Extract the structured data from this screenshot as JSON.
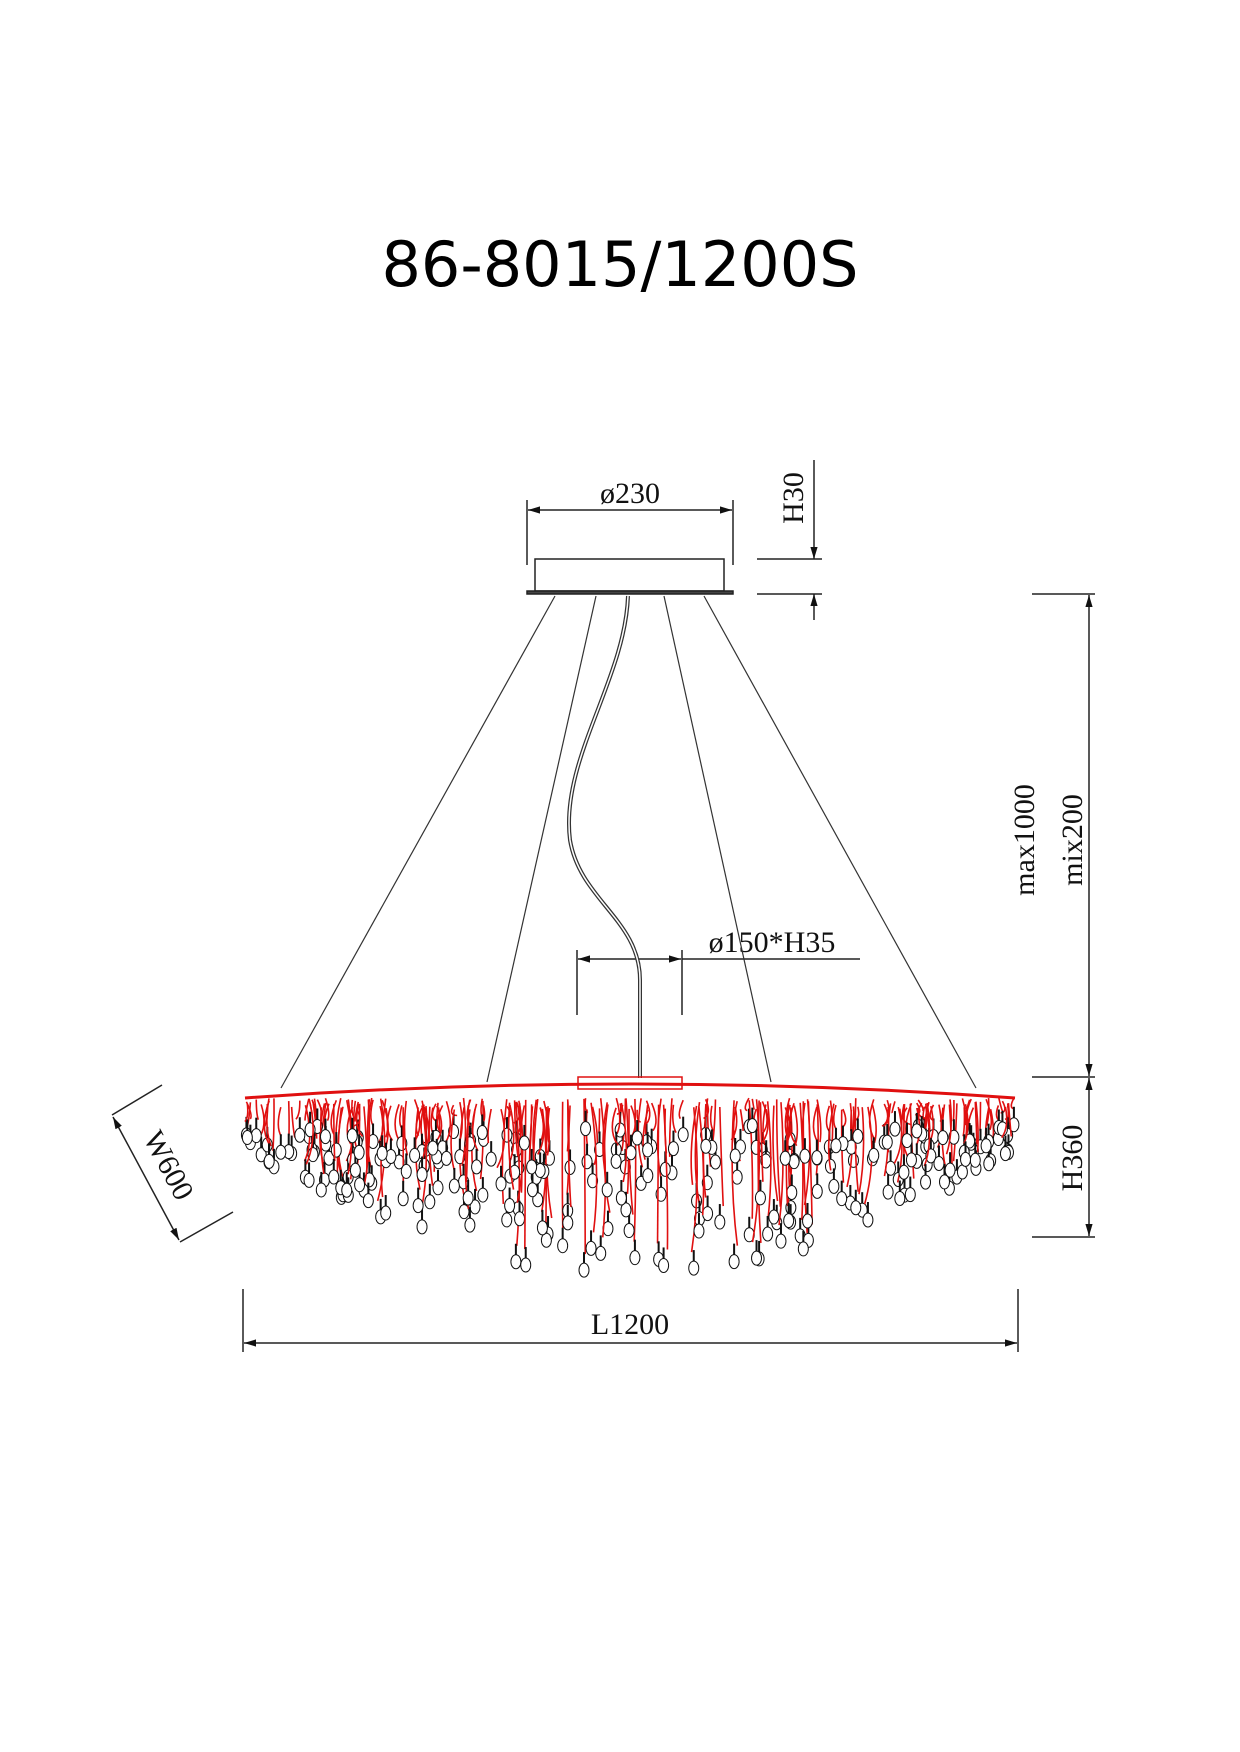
{
  "title": "86-8015/1200S",
  "dimensions": {
    "canopy_diameter": "ø230",
    "canopy_height": "H30",
    "suspension_max": "max1000",
    "suspension_min": "mix200",
    "base_size": "ø150*H35",
    "body_height": "H360",
    "width": "W600",
    "length": "L1200"
  },
  "colors": {
    "line": "#111111",
    "frame": "#e01010"
  }
}
